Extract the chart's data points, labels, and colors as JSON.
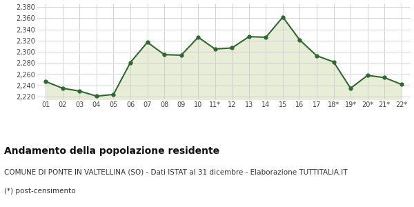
{
  "x_labels": [
    "01",
    "02",
    "03",
    "04",
    "05",
    "06",
    "07",
    "08",
    "09",
    "10",
    "11*",
    "12",
    "13",
    "14",
    "15",
    "16",
    "17",
    "18*",
    "19*",
    "20*",
    "21*",
    "22*"
  ],
  "y_values": [
    2247,
    2235,
    2230,
    2221,
    2224,
    2281,
    2317,
    2295,
    2294,
    2326,
    2305,
    2307,
    2327,
    2326,
    2362,
    2321,
    2293,
    2282,
    2235,
    2258,
    2254,
    2242
  ],
  "line_color": "#2d6a2d",
  "fill_color": "#e8edd8",
  "marker": "o",
  "marker_size": 3.5,
  "line_width": 1.5,
  "ylim": [
    2215,
    2385
  ],
  "yticks": [
    2220,
    2240,
    2260,
    2280,
    2300,
    2320,
    2340,
    2360,
    2380
  ],
  "title": "Andamento della popolazione residente",
  "subtitle": "COMUNE DI PONTE IN VALTELLINA (SO) - Dati ISTAT al 31 dicembre - Elaborazione TUTTITALIA.IT",
  "footnote": "(*) post-censimento",
  "title_fontsize": 10,
  "subtitle_fontsize": 7.5,
  "footnote_fontsize": 7.5,
  "tick_fontsize": 7,
  "background_color": "#ffffff",
  "grid_color": "#cccccc"
}
